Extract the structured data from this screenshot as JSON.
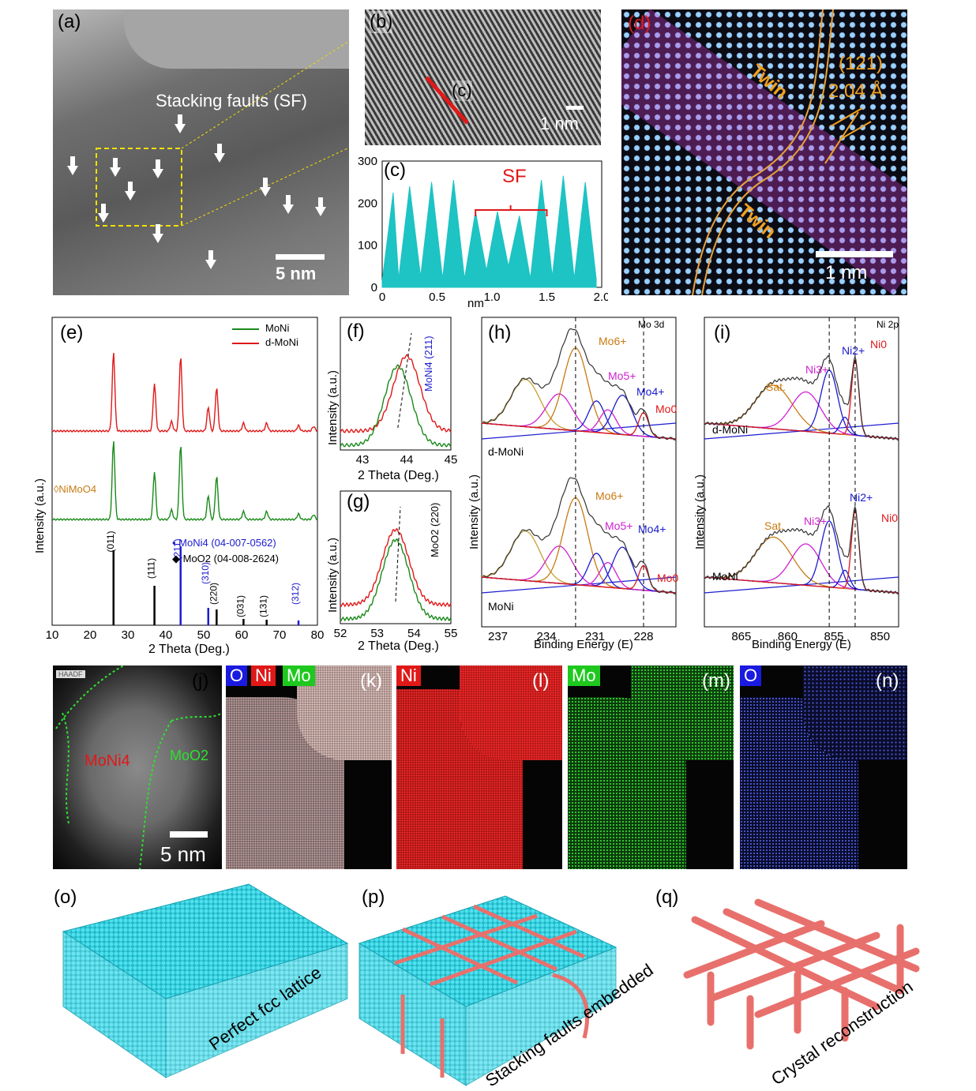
{
  "panels": {
    "a": {
      "label": "(a)",
      "annotation": "Stacking faults (SF)",
      "scale": "5 nm"
    },
    "b": {
      "label": "(b)",
      "inset": "(c)",
      "scale": "1 nm"
    },
    "c": {
      "label": "(c)",
      "annotation": "SF",
      "xlabel": "nm",
      "xticks": [
        "0",
        "0.5",
        "1.0",
        "1.5",
        "2.0"
      ],
      "yticks": [
        "0",
        "100",
        "200",
        "300"
      ]
    },
    "d": {
      "label": "(d)",
      "twin_top": "Twin",
      "twin_bottom": "Twin",
      "plane": "(121)",
      "spacing": "2.04 Å",
      "scale": "1 nm"
    },
    "e": {
      "label": "(e)",
      "xlabel": "2 Theta (Deg.)",
      "ylabel": "Intensity (a.u.)",
      "legend": [
        "MoNi",
        "d-MoNi"
      ],
      "ni_moo4": "◊NiMoO4",
      "ref1": "• MoNi4 (04-007-0562)",
      "ref2": "◆ MoO2 (04-008-2624)",
      "xticks": [
        "10",
        "20",
        "30",
        "40",
        "50",
        "60",
        "70",
        "80"
      ],
      "planes": [
        "(011)",
        "(111)",
        "(211)",
        "(310)",
        "(220)",
        "(031)",
        "(131)",
        "(312)"
      ]
    },
    "f": {
      "label": "(f)",
      "xlabel": "2 Theta (Deg.)",
      "ylabel": "Intensity (a.u.)",
      "peak": "MoNi4 (211)",
      "xticks": [
        "43",
        "44",
        "45"
      ]
    },
    "g": {
      "label": "(g)",
      "xlabel": "2 Theta (Deg.)",
      "ylabel": "Intensity (a.u.)",
      "peak": "MoO2 (220)",
      "xticks": [
        "52",
        "53",
        "54",
        "55"
      ]
    },
    "h": {
      "label": "(h)",
      "title": "Mo 3d",
      "xlabel": "Binding Energy (E)",
      "ylabel": "Intensity (a.u.)",
      "xticks": [
        "237",
        "234",
        "231",
        "228"
      ],
      "sample_top": "d-MoNi",
      "sample_bottom": "MoNi",
      "states": [
        "Mo6+",
        "Mo5+",
        "Mo4+",
        "Mo0"
      ]
    },
    "i": {
      "label": "(i)",
      "title": "Ni 2p",
      "xlabel": "Binding Energy (E)",
      "ylabel": "Intensity (a.u.)",
      "xticks": [
        "865",
        "860",
        "855",
        "850"
      ],
      "sample_top": "d-MoNi",
      "sample_bottom": "MoNi",
      "states": [
        "Sat.",
        "Ni3+",
        "Ni2+",
        "Ni0"
      ]
    },
    "j": {
      "label": "(j)",
      "tag": "HAADF",
      "phase1": "MoNi4",
      "phase2": "MoO2",
      "scale": "5 nm"
    },
    "k": {
      "label": "(k)",
      "o": "O",
      "ni": "Ni",
      "mo": "Mo"
    },
    "l": {
      "label": "(l)",
      "el": "Ni"
    },
    "m": {
      "label": "(m)",
      "el": "Mo"
    },
    "n": {
      "label": "(n)",
      "el": "O"
    },
    "o": {
      "label": "(o)",
      "caption": "Perfect fcc lattice"
    },
    "p": {
      "label": "(p)",
      "caption": "Stacking faults embedded"
    },
    "q": {
      "label": "(q)",
      "caption": "Crystal reconstruction"
    }
  },
  "colors": {
    "monI": "#1a8a1a",
    "dmoni": "#e01818",
    "teal": "#1ec3c3",
    "cyan_atom": "#22c8d8",
    "red_atom": "#e8706c",
    "blue_ref": "#1c1cd0"
  },
  "chart_data": [
    {
      "type": "area",
      "panel": "c",
      "title": "",
      "xlabel": "nm",
      "ylabel": "",
      "xlim": [
        0,
        2.0
      ],
      "ylim": [
        0,
        300
      ],
      "x": [
        0.0,
        0.1,
        0.15,
        0.25,
        0.35,
        0.45,
        0.55,
        0.65,
        0.75,
        0.85,
        0.95,
        1.05,
        1.15,
        1.25,
        1.35,
        1.45,
        1.55,
        1.65,
        1.75,
        1.85,
        1.95
      ],
      "y": [
        15,
        225,
        20,
        240,
        25,
        250,
        20,
        255,
        20,
        180,
        40,
        180,
        50,
        170,
        20,
        255,
        25,
        265,
        20,
        250,
        20
      ]
    }
  ]
}
